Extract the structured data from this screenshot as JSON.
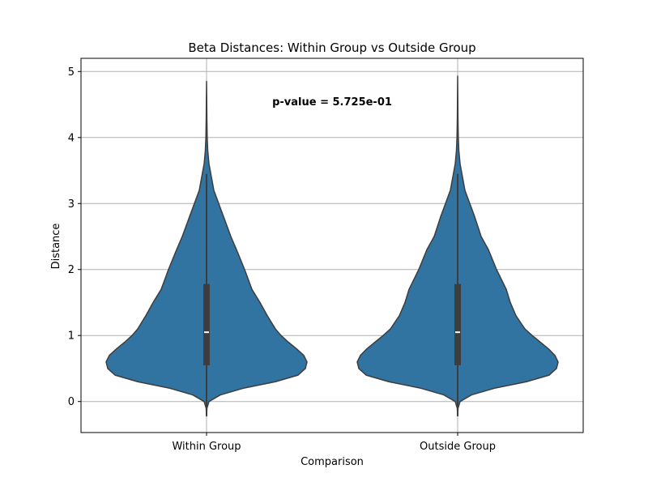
{
  "chart_data": {
    "type": "violin",
    "title": "Beta Distances: Within Group vs Outside Group",
    "xlabel": "Comparison",
    "ylabel": "Distance",
    "ylim": [
      -0.47,
      5.2
    ],
    "yticks": [
      "0",
      "1",
      "2",
      "3",
      "4",
      "5"
    ],
    "grid": true,
    "annotation": "p-value = 5.725e-01",
    "categories": [
      "Within Group",
      "Outside Group"
    ],
    "colors": {
      "violin": "#3274a1",
      "box": "#3d3d3d",
      "median": "#ffffff",
      "outline": "#3d3d3d"
    },
    "groups": [
      {
        "name": "Within Group",
        "min": -0.22,
        "q1": 0.55,
        "median": 1.05,
        "q3": 1.78,
        "whisker_high": 3.45,
        "max": 4.85,
        "density": [
          [
            -0.22,
            0.0
          ],
          [
            -0.1,
            0.05
          ],
          [
            0.0,
            0.3
          ],
          [
            0.1,
            1.7
          ],
          [
            0.2,
            4.5
          ],
          [
            0.3,
            8.5
          ],
          [
            0.4,
            11.3
          ],
          [
            0.5,
            12.2
          ],
          [
            0.6,
            12.4
          ],
          [
            0.7,
            12.0
          ],
          [
            0.8,
            11.1
          ],
          [
            0.9,
            10.1
          ],
          [
            1.0,
            9.2
          ],
          [
            1.1,
            8.5
          ],
          [
            1.3,
            7.5
          ],
          [
            1.5,
            6.6
          ],
          [
            1.7,
            5.6
          ],
          [
            2.0,
            4.7
          ],
          [
            2.3,
            3.7
          ],
          [
            2.5,
            3.0
          ],
          [
            2.8,
            2.1
          ],
          [
            3.0,
            1.5
          ],
          [
            3.2,
            0.9
          ],
          [
            3.4,
            0.6
          ],
          [
            3.6,
            0.3
          ],
          [
            3.8,
            0.15
          ],
          [
            4.0,
            0.08
          ],
          [
            4.3,
            0.04
          ],
          [
            4.6,
            0.02
          ],
          [
            4.85,
            0.0
          ]
        ]
      },
      {
        "name": "Outside Group",
        "min": -0.22,
        "q1": 0.55,
        "median": 1.05,
        "q3": 1.78,
        "whisker_high": 3.45,
        "max": 4.93,
        "density": [
          [
            -0.22,
            0.0
          ],
          [
            -0.1,
            0.05
          ],
          [
            0.0,
            0.3
          ],
          [
            0.1,
            1.7
          ],
          [
            0.2,
            4.5
          ],
          [
            0.3,
            8.5
          ],
          [
            0.4,
            11.3
          ],
          [
            0.5,
            12.2
          ],
          [
            0.6,
            12.4
          ],
          [
            0.7,
            12.0
          ],
          [
            0.8,
            11.2
          ],
          [
            0.9,
            10.2
          ],
          [
            1.0,
            9.2
          ],
          [
            1.1,
            8.3
          ],
          [
            1.3,
            7.2
          ],
          [
            1.5,
            6.5
          ],
          [
            1.7,
            6.0
          ],
          [
            2.0,
            4.8
          ],
          [
            2.3,
            3.8
          ],
          [
            2.5,
            2.9
          ],
          [
            2.8,
            2.1
          ],
          [
            3.0,
            1.5
          ],
          [
            3.2,
            0.9
          ],
          [
            3.4,
            0.6
          ],
          [
            3.6,
            0.3
          ],
          [
            3.8,
            0.15
          ],
          [
            4.0,
            0.08
          ],
          [
            4.3,
            0.04
          ],
          [
            4.6,
            0.02
          ],
          [
            4.93,
            0.0
          ]
        ]
      }
    ]
  }
}
